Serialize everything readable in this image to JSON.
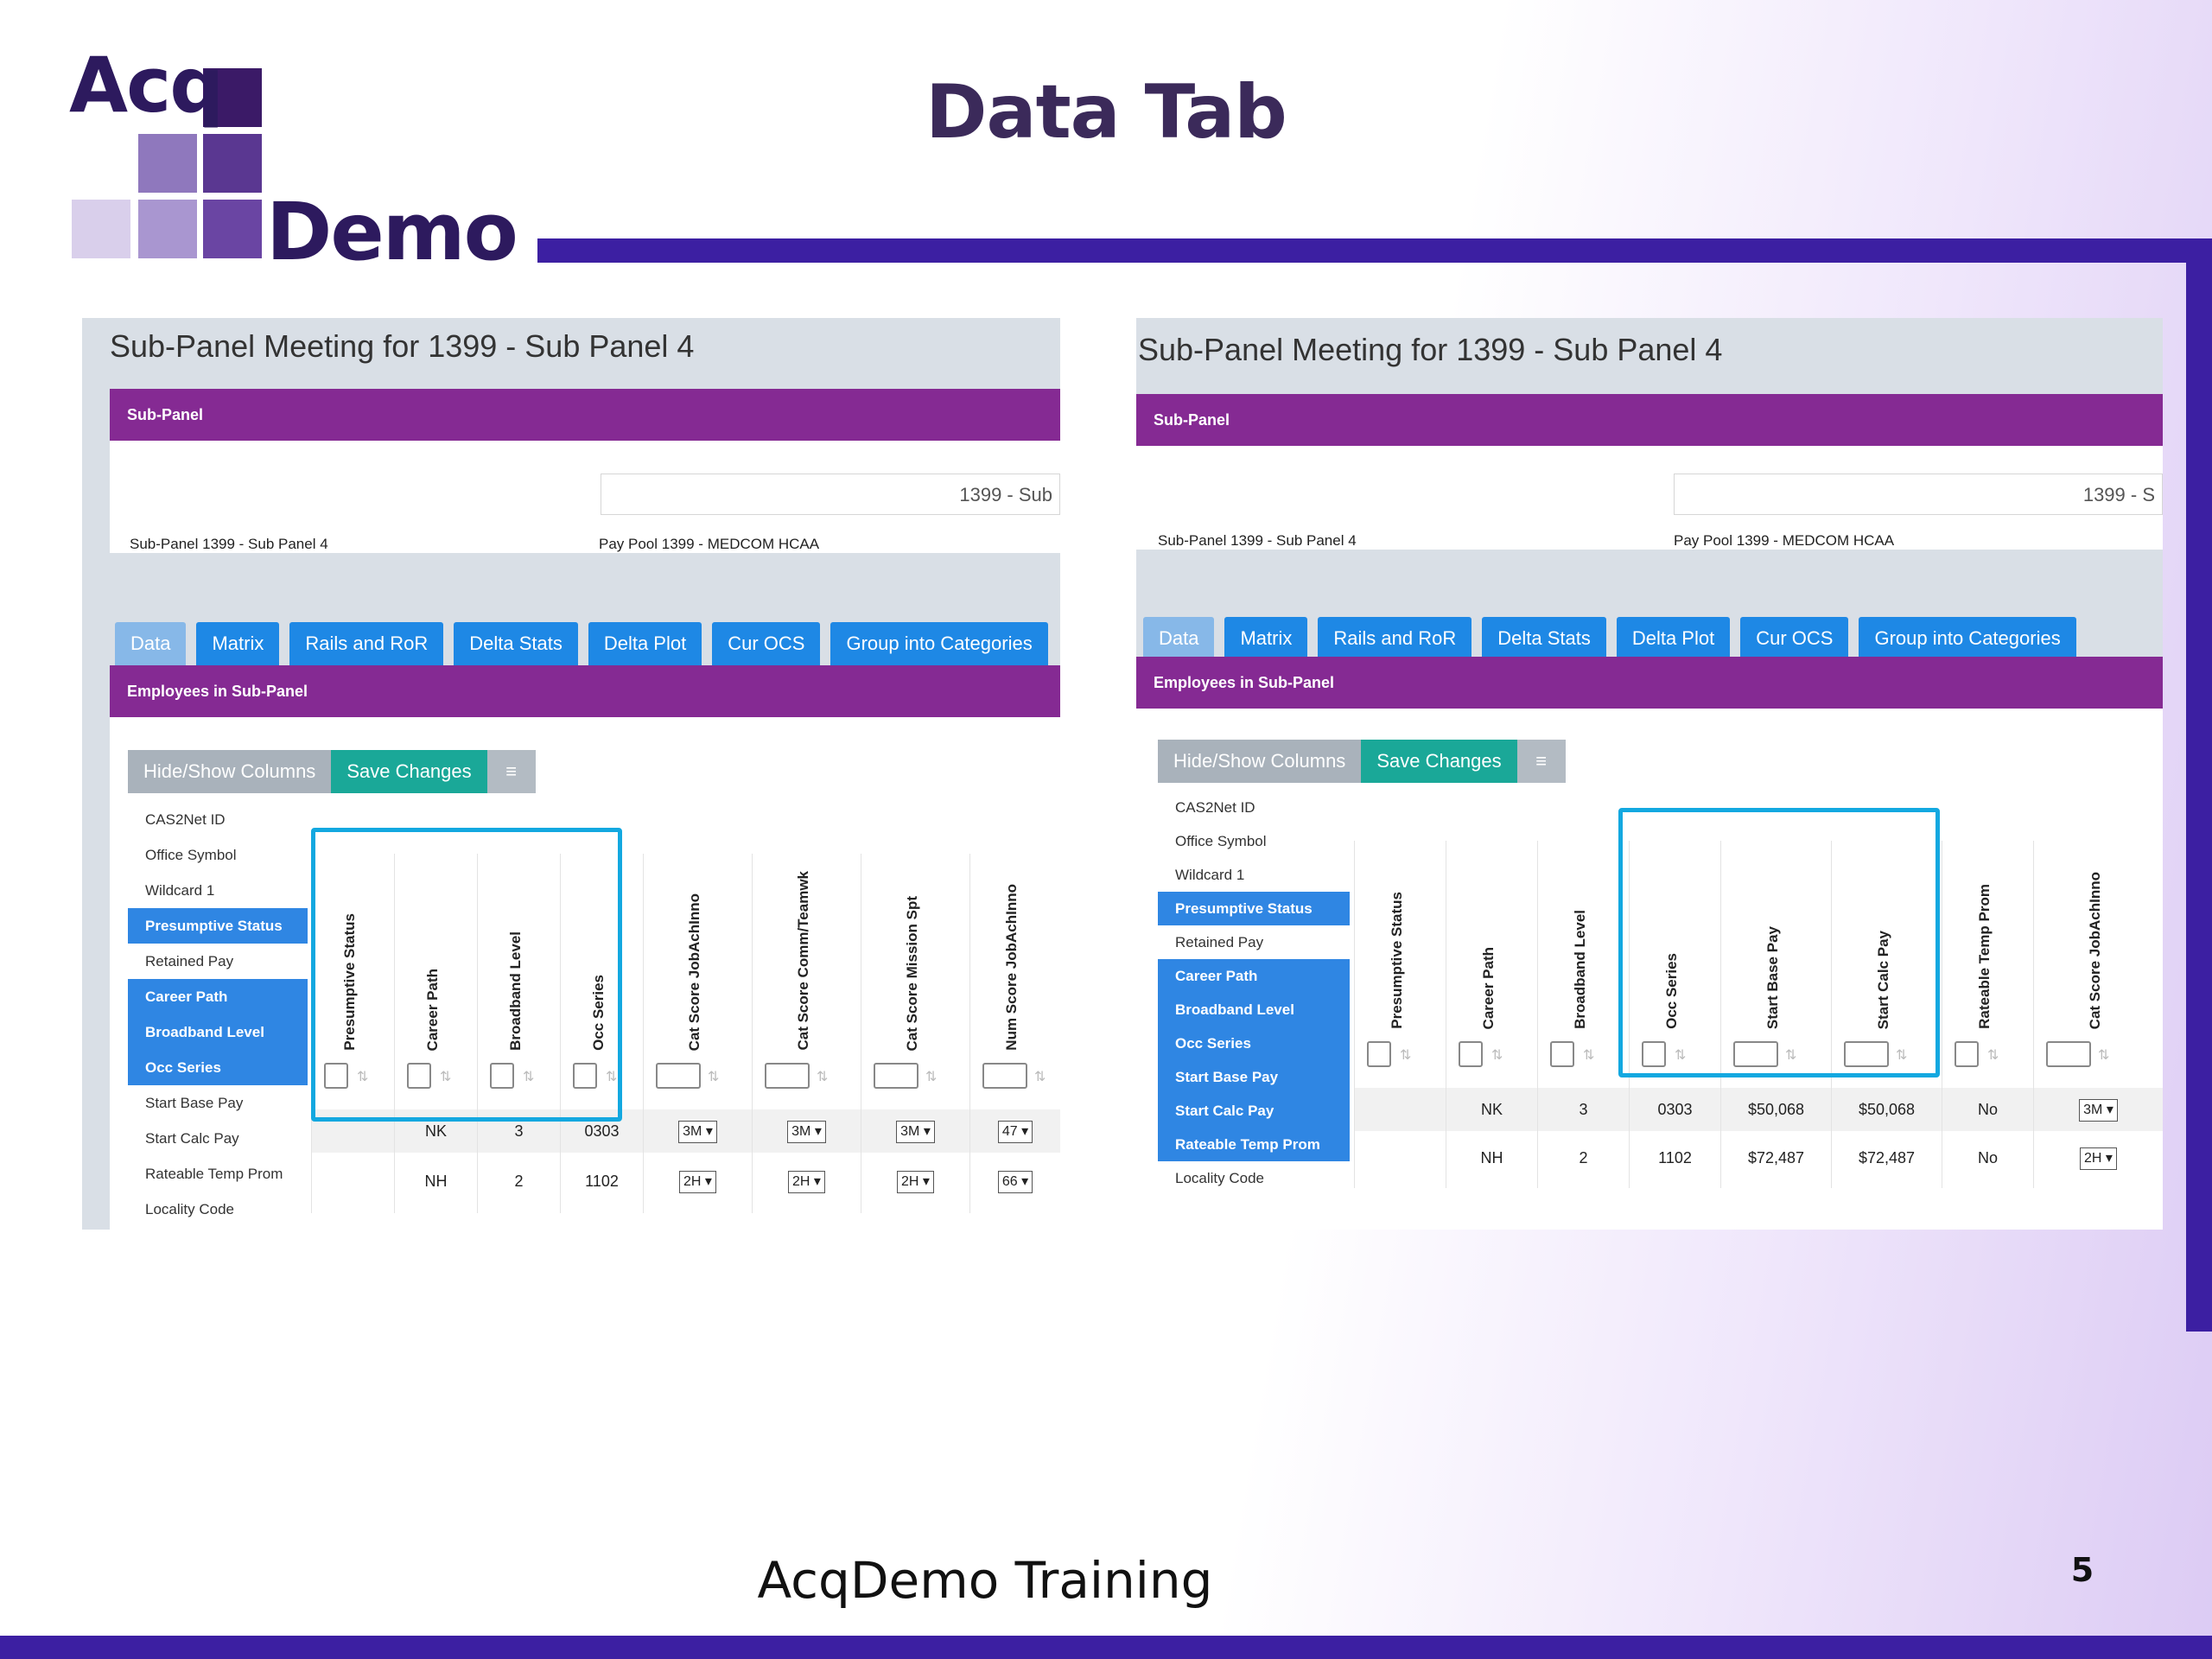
{
  "slide": {
    "title": "Data Tab",
    "footer": "AcqDemo Training",
    "page_number": "5",
    "logo": {
      "line1": "Acq",
      "line2": "Demo"
    }
  },
  "shots": [
    {
      "header_title": "Sub-Panel Meeting for 1399 - Sub Panel 4",
      "band_subpanel": "Sub-Panel",
      "field_value": "1399 - Sub",
      "info_subpanel": "Sub-Panel 1399 - Sub Panel 4",
      "info_paypool": "Pay Pool 1399 - MEDCOM HCAA",
      "tabs": [
        "Data",
        "Matrix",
        "Rails and RoR",
        "Delta Stats",
        "Delta Plot",
        "Cur OCS",
        "Group into Categories"
      ],
      "band_employees": "Employees in Sub-Panel",
      "buttons": {
        "hide_show": "Hide/Show Columns",
        "save": "Save Changes",
        "menu": "≡"
      },
      "column_list": [
        {
          "label": "CAS2Net ID",
          "selected": false
        },
        {
          "label": "Office Symbol",
          "selected": false
        },
        {
          "label": "Wildcard 1",
          "selected": false
        },
        {
          "label": "Presumptive Status",
          "selected": true
        },
        {
          "label": "Retained Pay",
          "selected": false
        },
        {
          "label": "Career Path",
          "selected": true
        },
        {
          "label": "Broadband Level",
          "selected": true
        },
        {
          "label": "Occ Series",
          "selected": true
        },
        {
          "label": "Start Base Pay",
          "selected": false
        },
        {
          "label": "Start Calc Pay",
          "selected": false
        },
        {
          "label": "Rateable Temp Prom",
          "selected": false
        },
        {
          "label": "Locality Code",
          "selected": false
        }
      ],
      "grid_columns": [
        "Presumptive Status",
        "Career Path",
        "Broadband Level",
        "Occ Series",
        "Cat Score JobAchInno",
        "Cat Score Comm/Teamwk",
        "Cat Score Mission Spt",
        "Num Score JobAchInno"
      ],
      "rows": [
        [
          "",
          "NK",
          "3",
          "0303",
          "3M",
          "3M",
          "3M",
          "47"
        ],
        [
          "",
          "NH",
          "2",
          "1102",
          "2H",
          "2H",
          "2H",
          "66"
        ]
      ]
    },
    {
      "header_title": "Sub-Panel Meeting for 1399 - Sub Panel 4",
      "band_subpanel": "Sub-Panel",
      "field_value": "1399 - S",
      "info_subpanel": "Sub-Panel 1399 - Sub Panel 4",
      "info_paypool": "Pay Pool 1399 - MEDCOM HCAA",
      "tabs": [
        "Data",
        "Matrix",
        "Rails and RoR",
        "Delta Stats",
        "Delta Plot",
        "Cur OCS",
        "Group into Categories"
      ],
      "band_employees": "Employees in Sub-Panel",
      "buttons": {
        "hide_show": "Hide/Show Columns",
        "save": "Save Changes",
        "menu": "≡"
      },
      "column_list": [
        {
          "label": "CAS2Net ID",
          "selected": false
        },
        {
          "label": "Office Symbol",
          "selected": false
        },
        {
          "label": "Wildcard 1",
          "selected": false
        },
        {
          "label": "Presumptive Status",
          "selected": true
        },
        {
          "label": "Retained Pay",
          "selected": false
        },
        {
          "label": "Career Path",
          "selected": true
        },
        {
          "label": "Broadband Level",
          "selected": true
        },
        {
          "label": "Occ Series",
          "selected": true
        },
        {
          "label": "Start Base Pay",
          "selected": true
        },
        {
          "label": "Start Calc Pay",
          "selected": true
        },
        {
          "label": "Rateable Temp Prom",
          "selected": true
        },
        {
          "label": "Locality Code",
          "selected": false
        }
      ],
      "grid_columns": [
        "Presumptive Status",
        "Career Path",
        "Broadband Level",
        "Occ Series",
        "Start Base Pay",
        "Start Calc Pay",
        "Rateable Temp Prom",
        "Cat Score JobAchInno"
      ],
      "rows": [
        [
          "",
          "NK",
          "3",
          "0303",
          "$50,068",
          "$50,068",
          "No",
          "3M"
        ],
        [
          "",
          "NH",
          "2",
          "1102",
          "$72,487",
          "$72,487",
          "No",
          "2H"
        ]
      ]
    }
  ],
  "colors": {
    "purple_band": "#852a93",
    "tab_blue": "#1e88e5",
    "highlight": "#13a8e0",
    "brand": "#3c1fa2"
  }
}
